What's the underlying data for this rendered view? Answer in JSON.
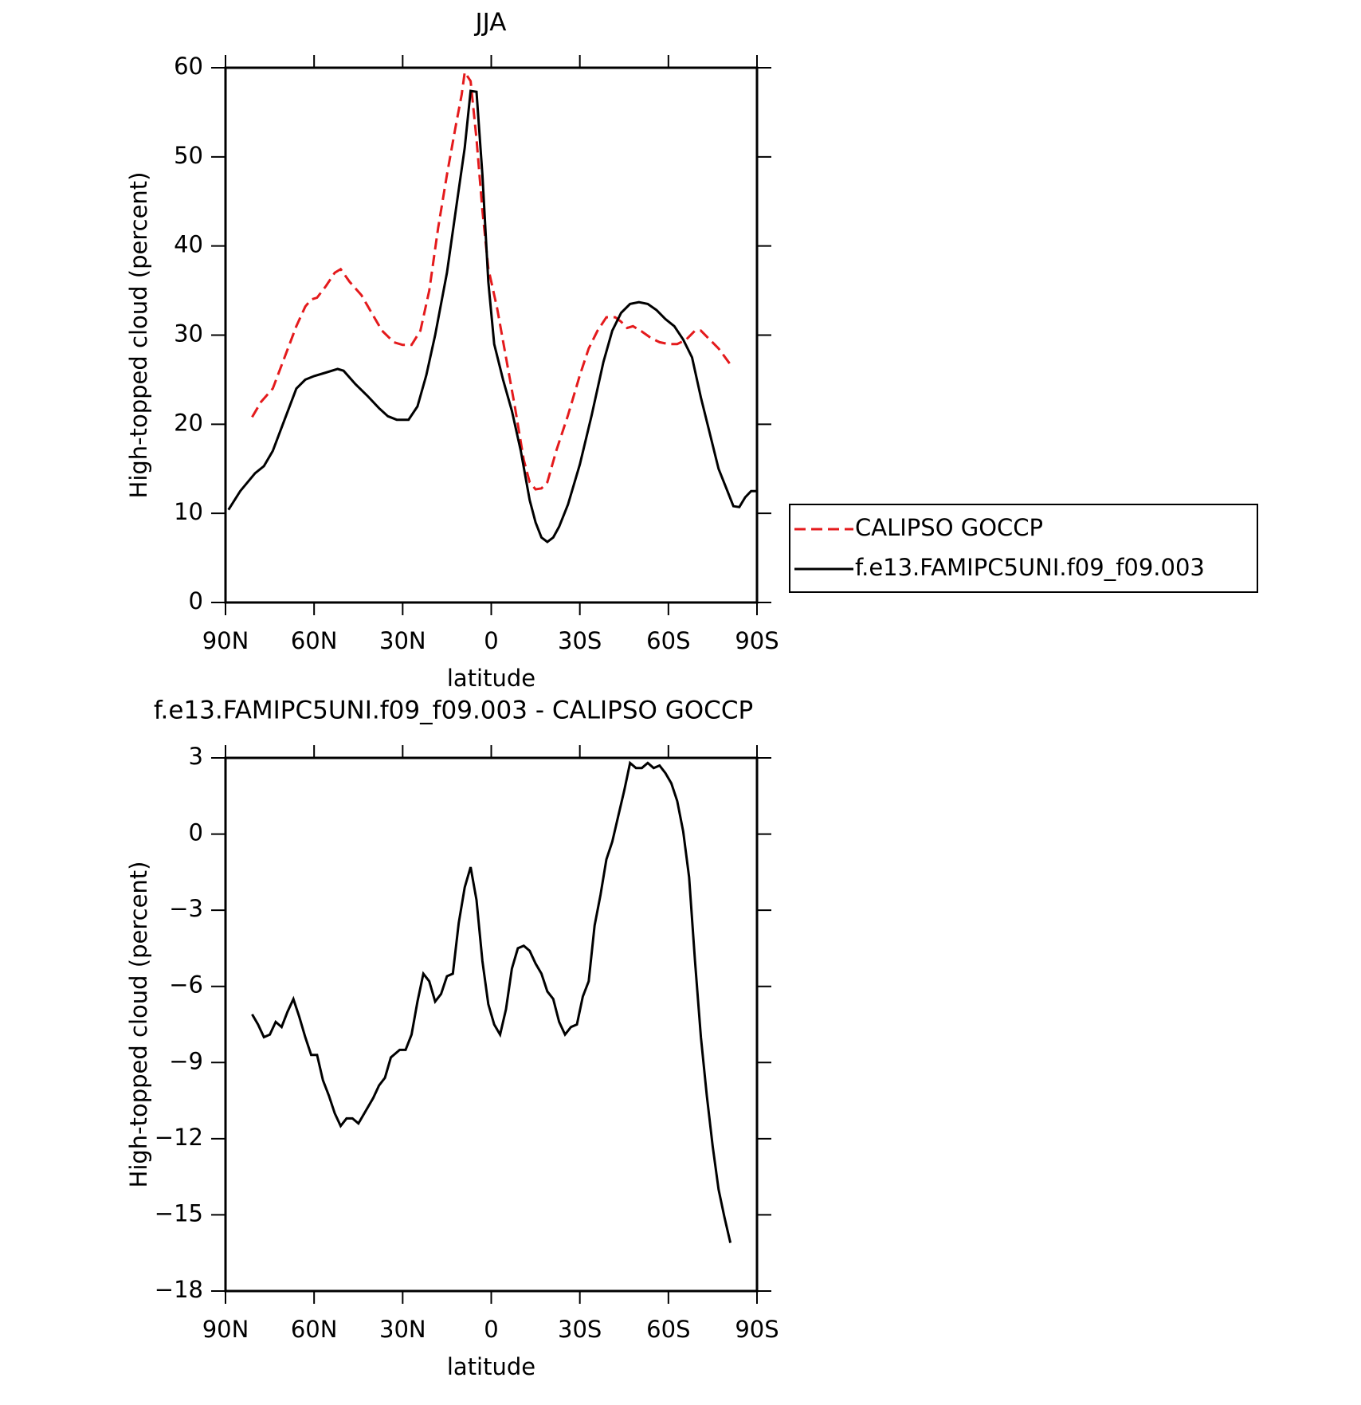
{
  "chart_data": [
    {
      "type": "line",
      "title": "JJA",
      "xlabel": "latitude",
      "ylabel": "High-topped cloud (percent)",
      "xlim": [
        90,
        -90
      ],
      "ylim": [
        0,
        60
      ],
      "xticks": [
        {
          "value": 90,
          "label": "90N"
        },
        {
          "value": 60,
          "label": "60N"
        },
        {
          "value": 30,
          "label": "30N"
        },
        0,
        {
          "value": -30,
          "label": "30S"
        },
        {
          "value": -60,
          "label": "60S"
        },
        {
          "value": -90,
          "label": "90S"
        }
      ],
      "yticks": [
        0,
        10,
        20,
        30,
        40,
        50,
        60
      ],
      "grid": false,
      "legend": "outside-right",
      "series": [
        {
          "name": "CALIPSO GOCCP",
          "color": "#e41a1c",
          "style": "dashed",
          "x": [
            81,
            78,
            74,
            70,
            66,
            63,
            61,
            59,
            56,
            53,
            51,
            48,
            44,
            40,
            37,
            33,
            30,
            27,
            24,
            21,
            18,
            15,
            12,
            10,
            9,
            8,
            7,
            5,
            3,
            1,
            -2,
            -5,
            -8,
            -11,
            -13,
            -15,
            -17,
            -19,
            -22,
            -26,
            -30,
            -33,
            -36,
            -39,
            -42,
            -44,
            -46,
            -48,
            -51,
            -54,
            -57,
            -60,
            -63,
            -66,
            -69,
            -71,
            -74,
            -77,
            -81
          ],
          "values": [
            20.8,
            22.5,
            24,
            27.5,
            31,
            33.2,
            34,
            34.2,
            35.5,
            37,
            37.4,
            36,
            34.5,
            32.2,
            30.5,
            29.2,
            28.9,
            28.9,
            30.5,
            35,
            42,
            48,
            53.5,
            57,
            59.5,
            59,
            58.5,
            52,
            44,
            37.5,
            33,
            27.5,
            22,
            16,
            13.5,
            12.7,
            12.8,
            13.5,
            17,
            21,
            25.5,
            28.5,
            30.5,
            32,
            32,
            31.5,
            30.8,
            31,
            30.4,
            29.7,
            29.2,
            29,
            29,
            29.5,
            30.5,
            30.5,
            29.5,
            28.5,
            26.7
          ]
        },
        {
          "name": "f.e13.FAMIPC5UNI.f09_f09.003",
          "color": "#000000",
          "style": "solid",
          "x": [
            89,
            85,
            80,
            77,
            74,
            70,
            66,
            63,
            60,
            56,
            52,
            50,
            46,
            42,
            38,
            35,
            32,
            28,
            25,
            22,
            19,
            15,
            12,
            9,
            7,
            5,
            3,
            1,
            -1,
            -4,
            -7,
            -10,
            -13,
            -15,
            -17,
            -19,
            -21,
            -23,
            -26,
            -30,
            -34,
            -38,
            -41,
            -44,
            -47,
            -50,
            -53,
            -56,
            -59,
            -62,
            -65,
            -68,
            -71,
            -74,
            -77,
            -80,
            -82,
            -84,
            -86,
            -88,
            -90
          ],
          "values": [
            10.4,
            12.5,
            14.5,
            15.3,
            17,
            20.5,
            24,
            25,
            25.4,
            25.8,
            26.2,
            26,
            24.5,
            23.2,
            21.8,
            20.9,
            20.5,
            20.5,
            22,
            25.5,
            30,
            37,
            44,
            51,
            57.4,
            57.3,
            48,
            36,
            29,
            25,
            21.5,
            17,
            11.5,
            9,
            7.3,
            6.8,
            7.3,
            8.5,
            11,
            15.5,
            21,
            27,
            30.5,
            32.5,
            33.5,
            33.7,
            33.5,
            32.8,
            31.8,
            31,
            29.5,
            27.5,
            23,
            19,
            15,
            12.5,
            10.8,
            10.7,
            11.8,
            12.5,
            12.5
          ]
        }
      ]
    },
    {
      "type": "line",
      "title": "f.e13.FAMIPC5UNI.f09_f09.003 - CALIPSO GOCCP",
      "xlabel": "latitude",
      "ylabel": "High-topped cloud (percent)",
      "xlim": [
        90,
        -90
      ],
      "ylim": [
        -18,
        3
      ],
      "xticks": [
        {
          "value": 90,
          "label": "90N"
        },
        {
          "value": 60,
          "label": "60N"
        },
        {
          "value": 30,
          "label": "30N"
        },
        0,
        {
          "value": -30,
          "label": "30S"
        },
        {
          "value": -60,
          "label": "60S"
        },
        {
          "value": -90,
          "label": "90S"
        }
      ],
      "yticks": [
        {
          "value": -18,
          "label": "−18"
        },
        {
          "value": -15,
          "label": "−15"
        },
        {
          "value": -12,
          "label": "−12"
        },
        {
          "value": -9,
          "label": "−9"
        },
        {
          "value": -6,
          "label": "−6"
        },
        {
          "value": -3,
          "label": "−3"
        },
        0,
        3
      ],
      "grid": false,
      "series": [
        {
          "color": "#000000",
          "style": "solid",
          "x": [
            81,
            79,
            77,
            75,
            73,
            71,
            69,
            67,
            65,
            63,
            61,
            59,
            57,
            55,
            53,
            51,
            49,
            47,
            45,
            43,
            40,
            38,
            36,
            34,
            31,
            29,
            27,
            25,
            23,
            21,
            19,
            17,
            15,
            13,
            11,
            9,
            7,
            5,
            3,
            1,
            -1,
            -3,
            -5,
            -7,
            -9,
            -11,
            -13,
            -15,
            -17,
            -19,
            -21,
            -23,
            -25,
            -27,
            -29,
            -31,
            -33,
            -35,
            -37,
            -39,
            -41,
            -43,
            -45,
            -47,
            -49,
            -51,
            -53,
            -55,
            -57,
            -59,
            -61,
            -63,
            -65,
            -67,
            -69,
            -71,
            -73,
            -75,
            -77,
            -79,
            -81
          ],
          "values": [
            -7.1,
            -7.5,
            -8,
            -7.9,
            -7.4,
            -7.6,
            -7,
            -6.5,
            -7.2,
            -8,
            -8.7,
            -8.7,
            -9.7,
            -10.3,
            -11,
            -11.5,
            -11.2,
            -11.2,
            -11.4,
            -11,
            -10.4,
            -9.9,
            -9.6,
            -8.8,
            -8.5,
            -8.5,
            -7.9,
            -6.6,
            -5.5,
            -5.8,
            -6.6,
            -6.3,
            -5.6,
            -5.5,
            -3.5,
            -2.1,
            -1.3,
            -2.6,
            -5,
            -6.7,
            -7.5,
            -7.9,
            -6.9,
            -5.3,
            -4.5,
            -4.4,
            -4.6,
            -5.1,
            -5.5,
            -6.2,
            -6.5,
            -7.4,
            -7.9,
            -7.6,
            -7.5,
            -6.4,
            -5.8,
            -3.6,
            -2.4,
            -1,
            -0.3,
            0.7,
            1.7,
            2.8,
            2.6,
            2.6,
            2.8,
            2.6,
            2.7,
            2.4,
            2,
            1.3,
            0.1,
            -1.7,
            -5,
            -8,
            -10.3,
            -12.3,
            -14,
            -15.1,
            -16.1
          ]
        }
      ]
    }
  ]
}
